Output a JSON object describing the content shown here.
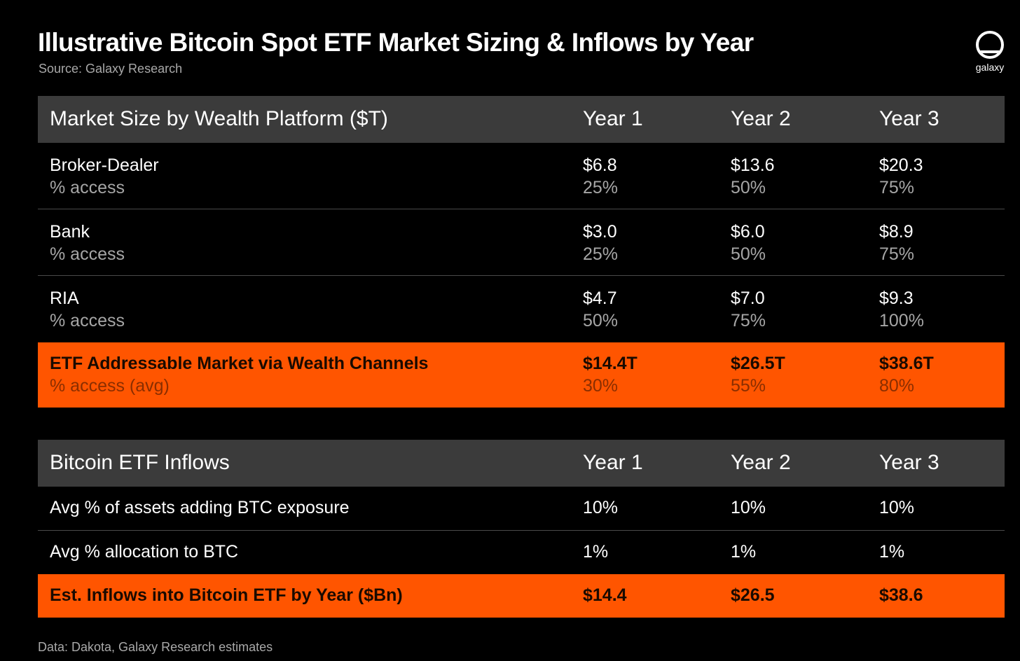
{
  "header": {
    "title": "Illustrative Bitcoin Spot ETF Market Sizing & Inflows by Year",
    "source": "Source: Galaxy Research",
    "logo_text": "galaxy"
  },
  "table1": {
    "headers": [
      "Market Size by Wealth Platform ($T)",
      "Year 1",
      "Year 2",
      "Year 3"
    ],
    "rows": [
      {
        "label": "Broker-Dealer",
        "sub": "% access",
        "values": [
          "$6.8",
          "$13.6",
          "$20.3"
        ],
        "subs": [
          "25%",
          "50%",
          "75%"
        ]
      },
      {
        "label": "Bank",
        "sub": "% access",
        "values": [
          "$3.0",
          "$6.0",
          "$8.9"
        ],
        "subs": [
          "25%",
          "50%",
          "75%"
        ]
      },
      {
        "label": "RIA",
        "sub": "% access",
        "values": [
          "$4.7",
          "$7.0",
          "$9.3"
        ],
        "subs": [
          "50%",
          "75%",
          "100%"
        ]
      }
    ],
    "total": {
      "label": "ETF Addressable Market via Wealth Channels",
      "sub": "% access (avg)",
      "values": [
        "$14.4T",
        "$26.5T",
        "$38.6T"
      ],
      "subs": [
        "30%",
        "55%",
        "80%"
      ]
    }
  },
  "table2": {
    "headers": [
      "Bitcoin ETF Inflows",
      "Year 1",
      "Year 2",
      "Year 3"
    ],
    "rows": [
      {
        "label": "Avg % of assets adding BTC exposure",
        "values": [
          "10%",
          "10%",
          "10%"
        ]
      },
      {
        "label": "Avg % allocation to BTC",
        "values": [
          "1%",
          "1%",
          "1%"
        ]
      }
    ],
    "total": {
      "label": "Est. Inflows into Bitcoin ETF by Year ($Bn)",
      "values": [
        "$14.4",
        "$26.5",
        "$38.6"
      ]
    }
  },
  "footer": "Data: Dakota, Galaxy Research estimates",
  "colors": {
    "background": "#000000",
    "header_row": "#3b3b3b",
    "accent": "#ff5500"
  },
  "icons": {
    "logo": "galaxy-logo-icon"
  }
}
